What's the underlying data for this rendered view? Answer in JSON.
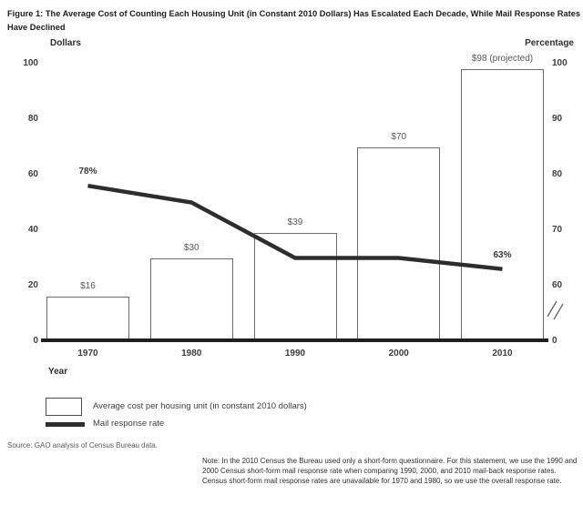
{
  "figure": {
    "title": "Figure 1: The Average Cost of Counting Each Housing Unit (in Constant 2010 Dollars) Has Escalated Each Decade, While Mail Response Rates Have Declined",
    "source": "Source: GAO analysis of Census Bureau data.",
    "note": "Note: In the 2010 Census the Bureau used only a short-form questionnaire. For this statement, we use the 1990 and 2000 Census short-form mail response rate when comparing 1990, 2000, and 2010 mail-back response rates. Census short-form mail response rates are unavailable for 1970 and 1980, so we use the overall response rate."
  },
  "axes": {
    "left_title": "Dollars",
    "right_title": "Percentage",
    "x_title": "Year"
  },
  "legend": {
    "items": [
      {
        "swatch": "bar-outline",
        "label": "Average cost per housing unit (in constant 2010 dollars)"
      },
      {
        "swatch": "thick-line",
        "label": "Mail response rate"
      }
    ]
  },
  "colors": {
    "line": "#2d2d30",
    "bar_fill": "#ffffff",
    "bar_border": "#6a6b6e",
    "baseline": "#231f20",
    "value_label": "#55565b",
    "axis_break": "#6a6b6e"
  },
  "chart_data": {
    "type": "bar+line combo",
    "categories": [
      "1970",
      "1980",
      "1990",
      "2000",
      "2010"
    ],
    "series": [
      {
        "name": "Average cost per housing unit (in constant 2010 dollars)",
        "type": "bar",
        "axis": "left",
        "values": [
          16,
          30,
          39,
          70,
          98
        ],
        "point_labels": [
          "$16",
          "$30",
          "$39",
          "$70",
          "$98 (projected)"
        ]
      },
      {
        "name": "Mail response rate",
        "type": "line",
        "axis": "right",
        "values": [
          78,
          75,
          65,
          65,
          63
        ],
        "point_labels": [
          "78%",
          "",
          "",
          "",
          "63%"
        ]
      }
    ],
    "xlabel": "Year",
    "left_axis": {
      "title": "Dollars",
      "ticks": [
        100,
        80,
        60,
        40,
        20,
        0
      ],
      "range": [
        0,
        100
      ]
    },
    "right_axis": {
      "title": "Percentage",
      "ticks": [
        100,
        90,
        80,
        70,
        60,
        0
      ],
      "visible_range": [
        60,
        100
      ],
      "axis_break": true,
      "note": "60-100 on right axis spans 20-100 of left axis; break symbol between 60 and 0"
    },
    "grid": false,
    "legend_position": "below-left",
    "bar_fill": "white",
    "line_style": "thick solid dark"
  }
}
